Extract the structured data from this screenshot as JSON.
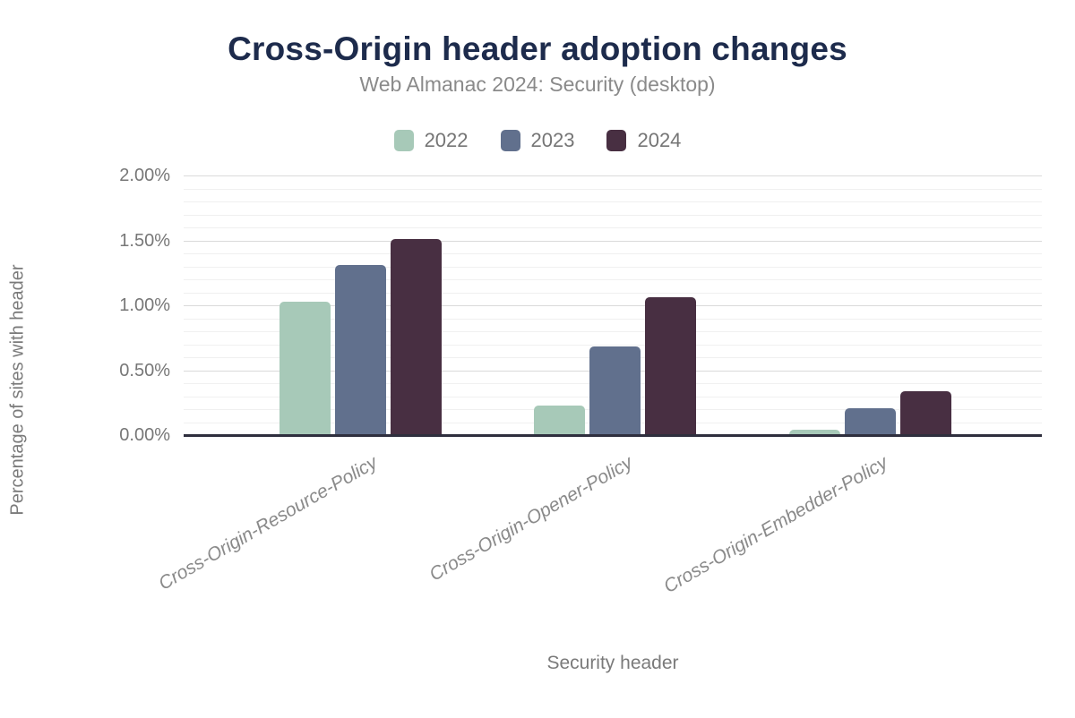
{
  "chart_data": {
    "type": "bar",
    "title": "Cross-Origin header adoption changes",
    "subtitle": "Web Almanac 2024: Security (desktop)",
    "xlabel": "Security header",
    "ylabel": "Percentage of sites with header",
    "categories": [
      "Cross-Origin-Resource-Policy",
      "Cross-Origin-Opener-Policy",
      "Cross-Origin-Embedder-Policy"
    ],
    "series": [
      {
        "name": "2022",
        "color": "#a7c9b8",
        "values": [
          1.03,
          0.23,
          0.04
        ]
      },
      {
        "name": "2023",
        "color": "#61708d",
        "values": [
          1.31,
          0.68,
          0.21
        ]
      },
      {
        "name": "2024",
        "color": "#482f42",
        "values": [
          1.51,
          1.06,
          0.34
        ]
      }
    ],
    "value_unit": "%",
    "ylim": [
      0,
      2.05
    ],
    "yticks": [
      {
        "value": 0.0,
        "label": "0.00%"
      },
      {
        "value": 0.5,
        "label": "0.50%"
      },
      {
        "value": 1.0,
        "label": "1.00%"
      },
      {
        "value": 1.5,
        "label": "1.50%"
      },
      {
        "value": 2.0,
        "label": "2.00%"
      }
    ],
    "grid": {
      "minor_step": 0.1,
      "major_step": 0.5,
      "minor_color": "#f0f0f0",
      "major_color": "#dadada"
    },
    "legend_position": "top",
    "colors": {
      "title": "#1d2b4c",
      "subtitle": "#8a8a8a",
      "axis_line": "#2f2f3e",
      "tick_label": "#777777",
      "axis_title": "#7a7a7a",
      "category_label": "#8a8a8a",
      "background": "#ffffff"
    }
  }
}
